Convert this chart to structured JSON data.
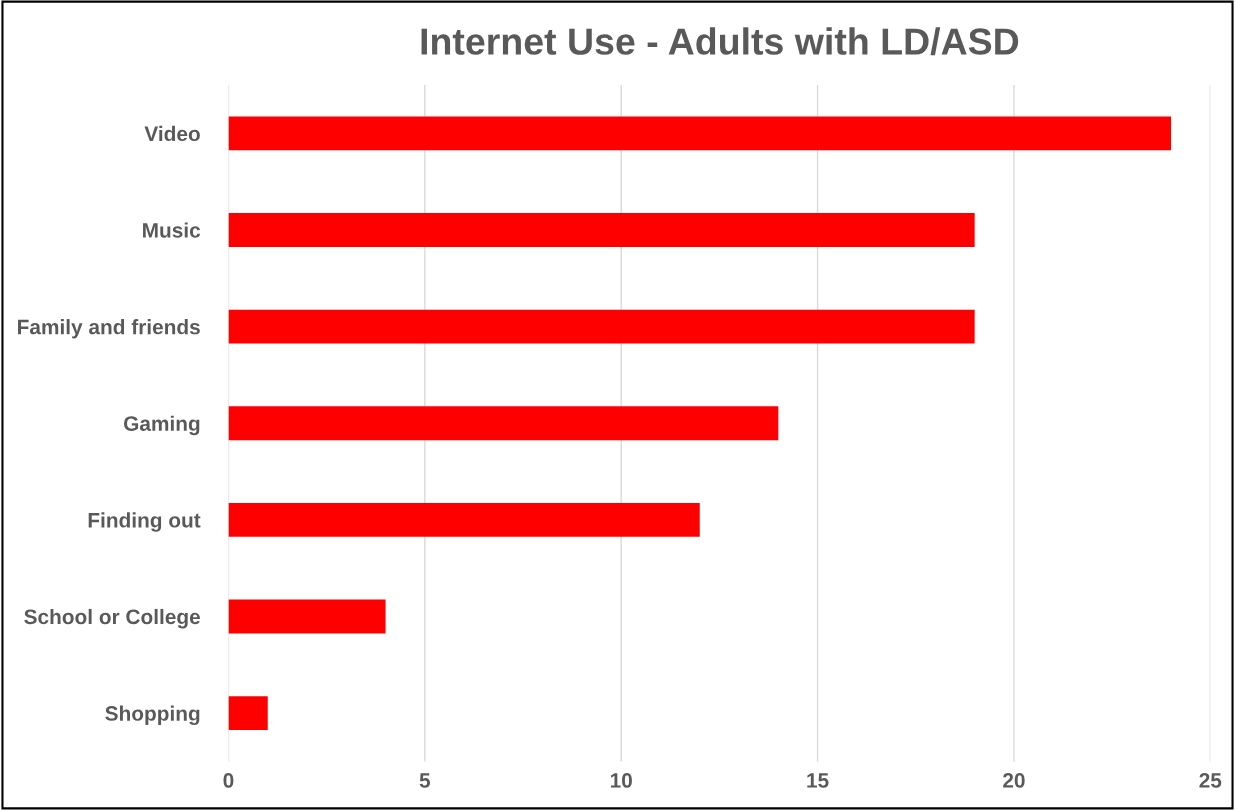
{
  "chart_data": {
    "type": "bar",
    "orientation": "horizontal",
    "title": "Internet Use - Adults with LD/ASD",
    "categories": [
      "Video",
      "Music",
      "Family and friends",
      "Gaming",
      "Finding out",
      "School or College",
      "Shopping"
    ],
    "values": [
      24,
      19,
      19,
      14,
      12,
      4,
      1
    ],
    "color": "#ff0000",
    "xlim": [
      0,
      25
    ],
    "xticks": [
      0,
      5,
      10,
      15,
      20,
      25
    ],
    "grid": "x",
    "legend": false
  }
}
